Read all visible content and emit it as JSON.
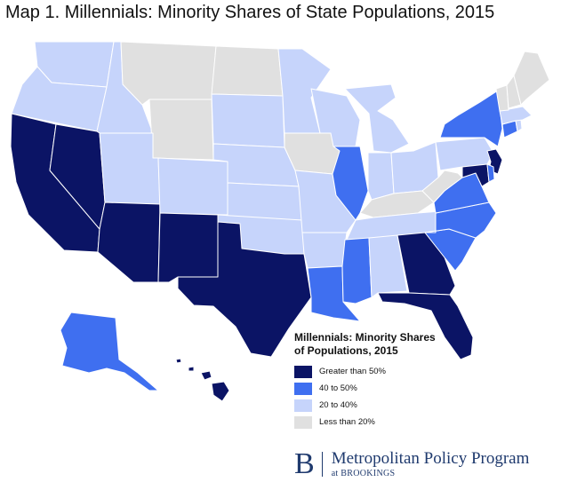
{
  "title": "Map 1. Millennials: Minority Shares of State Populations, 2015",
  "legend": {
    "title_line1": "Millennials: Minority Shares",
    "title_line2": "of Populations, 2015",
    "items": [
      {
        "label": "Greater than 50%",
        "color": "#0b1465"
      },
      {
        "label": "40 to 50%",
        "color": "#3f6ff0"
      },
      {
        "label": "20 to 40%",
        "color": "#c6d4fb"
      },
      {
        "label": "Less than 20%",
        "color": "#e0e0e0"
      }
    ]
  },
  "states": {
    "greater_than_50": [
      "California",
      "Nevada",
      "Arizona",
      "New Mexico",
      "Texas",
      "Georgia",
      "Florida",
      "Maryland",
      "New Jersey",
      "Hawaii"
    ],
    "40_to_50": [
      "New York",
      "Illinois",
      "Virginia",
      "North Carolina",
      "South Carolina",
      "Louisiana",
      "Mississippi",
      "Delaware",
      "Connecticut",
      "Alaska"
    ],
    "20_to_40": [
      "Washington",
      "Oregon",
      "Idaho",
      "Utah",
      "Colorado",
      "Nebraska",
      "Kansas",
      "Oklahoma",
      "Arkansas",
      "Missouri",
      "Minnesota",
      "Wisconsin",
      "Michigan",
      "Indiana",
      "Ohio",
      "Pennsylvania",
      "Tennessee",
      "Alabama",
      "South Dakota",
      "Massachusetts",
      "Rhode Island"
    ],
    "less_than_20": [
      "Montana",
      "Wyoming",
      "North Dakota",
      "Iowa",
      "Kentucky",
      "West Virginia",
      "Vermont",
      "New Hampshire",
      "Maine"
    ]
  },
  "brand": {
    "logo_letter": "B",
    "name": "Metropolitan Policy Program",
    "subtitle": "at BROOKINGS"
  }
}
